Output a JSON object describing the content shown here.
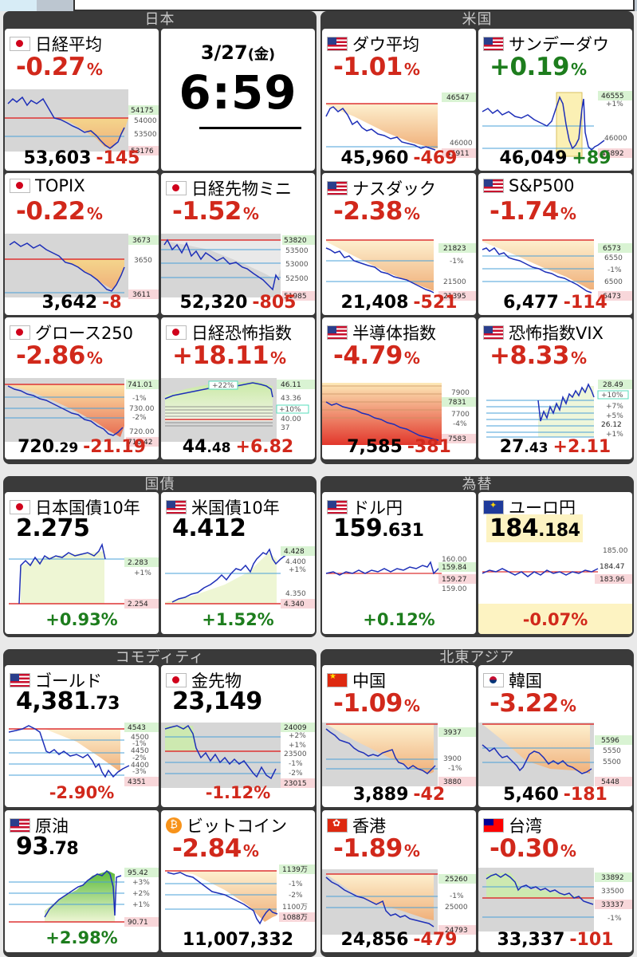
{
  "date": "3/27",
  "weekday": "(金)",
  "time": "6:59",
  "groups": {
    "japan": "日本",
    "us": "米国",
    "bonds": "国債",
    "fx": "為替",
    "commodity": "コモディティ",
    "asia": "北東アジア"
  },
  "cards": {
    "nikkei": {
      "name": "日経平均",
      "pct": "-0.27",
      "unit": "%",
      "value": "53,603",
      "change": "-145",
      "flag": "jp",
      "ticks": {
        "hi": "54175",
        "t1": "54000",
        "t2": "53500",
        "lo": "53176"
      }
    },
    "dow": {
      "name": "ダウ平均",
      "pct": "-1.01",
      "unit": "%",
      "value": "45,960",
      "change": "-469",
      "flag": "us",
      "ticks": {
        "hi": "46547",
        "t1": "46000",
        "lo": "45911"
      }
    },
    "sundow": {
      "name": "サンデーダウ",
      "pct": "+0.19",
      "unit": "%",
      "value": "46,049",
      "change": "+89",
      "flag": "us",
      "ticks": {
        "hi": "46555",
        "p1": "+1%",
        "t1": "46000",
        "lo": "45892"
      }
    },
    "topix": {
      "name": "TOPIX",
      "pct": "-0.22",
      "unit": "%",
      "value": "3,642",
      "change": "-8",
      "flag": "jp",
      "ticks": {
        "hi": "3673",
        "t1": "3650",
        "lo": "3611"
      }
    },
    "nkfut": {
      "name": "日経先物ミニ",
      "pct": "-1.52",
      "unit": "%",
      "value": "52,320",
      "change": "-805",
      "flag": "jp",
      "ticks": {
        "hi": "53820",
        "t1": "53500",
        "t2": "53000",
        "t3": "52500",
        "lo": "51985"
      }
    },
    "nasdaq": {
      "name": "ナスダック",
      "pct": "-2.38",
      "unit": "%",
      "value": "21,408",
      "change": "-521",
      "flag": "us",
      "ticks": {
        "hi": "21823",
        "m1": "-1%",
        "t1": "21500",
        "lo": "21395"
      }
    },
    "sp500": {
      "name": "S&P500",
      "pct": "-1.74",
      "unit": "%",
      "value": "6,477",
      "change": "-114",
      "flag": "us",
      "ticks": {
        "hi": "6573",
        "t1": "6550",
        "m1": "-1%",
        "t2": "6500",
        "lo": "6473"
      }
    },
    "growth": {
      "name": "グロース250",
      "pct": "-2.86",
      "unit": "%",
      "value_int": "720",
      "value_dec": ".29",
      "change": "-21.19",
      "flag": "jp",
      "ticks": {
        "hi": "741.01",
        "m1": "-1%",
        "t1": "730.00",
        "m2": "-2%",
        "t2": "720.00",
        "lo": "716.42"
      }
    },
    "nkvi": {
      "name": "日経恐怖指数",
      "pct": "+18.11",
      "unit": "%",
      "value_int": "44",
      "value_dec": ".48",
      "change": "+6.82",
      "flag": "jp",
      "ticks": {
        "hi": "46.11",
        "p22": "+22%",
        "t1": "43.36",
        "p10": "+10%",
        "t2": "40.00",
        "lo": "37"
      }
    },
    "sox": {
      "name": "半導体指数",
      "pct": "-4.79",
      "unit": "%",
      "value": "7,585",
      "change": "-381",
      "flag": "us",
      "ticks": {
        "t1": "7900",
        "hi": "7831",
        "t2": "7700",
        "m4": "-4%",
        "lo": "7583"
      }
    },
    "vix": {
      "name": "恐怖指数VIX",
      "pct": "+8.33",
      "unit": "%",
      "value_int": "27",
      "value_dec": ".43",
      "change": "+2.11",
      "flag": "us",
      "ticks": {
        "hi": "28.49",
        "p10": "+10%",
        "p7": "+7%",
        "p5": "+5%",
        "t1": "26.12",
        "p1": "+1%"
      }
    },
    "jgb": {
      "name": "日本国債10年",
      "price": "2.275",
      "pct": "+0.93%",
      "flag": "jp",
      "ticks": {
        "hi": "2.283",
        "p1": "+1%",
        "lo": "2.254"
      }
    },
    "ust": {
      "name": "米国債10年",
      "price": "4.412",
      "pct": "+1.52%",
      "flag": "us",
      "ticks": {
        "hi": "4.428",
        "t1": "4.400",
        "p1": "+1%",
        "t2": "4.350",
        "lo": "4.340"
      }
    },
    "usdjpy": {
      "name": "ドル円",
      "price_int": "159",
      "price_dec": ".631",
      "pct": "+0.12%",
      "flag": "us",
      "ticks": {
        "t0": "160.00",
        "hi": "159.84",
        "lo": "159.27",
        "t1": "159.00"
      }
    },
    "eurjpy": {
      "name": "ユーロ円",
      "price_int": "184",
      "price_dec": ".184",
      "pct": "-0.07%",
      "flag": "eu",
      "ticks": {
        "t0": "185.00",
        "hi": "184.47",
        "lo": "183.96"
      }
    },
    "gold": {
      "name": "ゴールド",
      "price_int": "4,381",
      "price_dec": ".73",
      "pct": "-2.90%",
      "flag": "us",
      "ticks": {
        "hi": "4543",
        "t1": "4500",
        "t2": "4450",
        "t3": "4400",
        "lo": "4351",
        "m1": "-1%",
        "m2": "-2%",
        "m3": "-3%"
      }
    },
    "goldfut": {
      "name": "金先物",
      "price": "23,149",
      "pct": "-1.12%",
      "flag": "jp",
      "ticks": {
        "hi": "24009",
        "p2": "+2%",
        "p1": "+1%",
        "t1": "23500",
        "m1": "-1%",
        "m2": "-2%",
        "lo": "23015"
      }
    },
    "china": {
      "name": "中国",
      "pct": "-1.09",
      "unit": "%",
      "value": "3,889",
      "change": "-42",
      "flag": "cn",
      "ticks": {
        "hi": "3937",
        "t1": "3900",
        "m1": "-1%",
        "lo": "3880"
      }
    },
    "korea": {
      "name": "韓国",
      "pct": "-3.22",
      "unit": "%",
      "value": "5,460",
      "change": "-181",
      "flag": "kr",
      "ticks": {
        "hi": "5596",
        "t1": "5550",
        "t2": "5500",
        "lo": "5448"
      }
    },
    "oil": {
      "name": "原油",
      "price_int": "93",
      "price_dec": ".78",
      "pct": "+2.98%",
      "flag": "us",
      "ticks": {
        "hi": "95.42",
        "p3": "+3%",
        "p2": "+2%",
        "p1": "+1%",
        "lo": "90.71"
      }
    },
    "btc": {
      "name": "ビットコイン",
      "pct": "-2.84",
      "unit": "%",
      "value": "11,007,332",
      "ticks": {
        "hi": "1139万",
        "m1": "-1%",
        "m2": "-2%",
        "t1": "1100万",
        "lo": "1088万"
      }
    },
    "hk": {
      "name": "香港",
      "pct": "-1.89",
      "unit": "%",
      "value": "24,856",
      "change": "-479",
      "flag": "hk",
      "ticks": {
        "hi": "25260",
        "m1": "-1%",
        "t1": "25000",
        "lo": "24793"
      }
    },
    "taiwan": {
      "name": "台湾",
      "pct": "-0.30",
      "unit": "%",
      "value": "33,337",
      "change": "-101",
      "flag": "tw",
      "ticks": {
        "hi": "33892",
        "t1": "33500",
        "lo": "33337",
        "m1": "-1%"
      }
    }
  }
}
